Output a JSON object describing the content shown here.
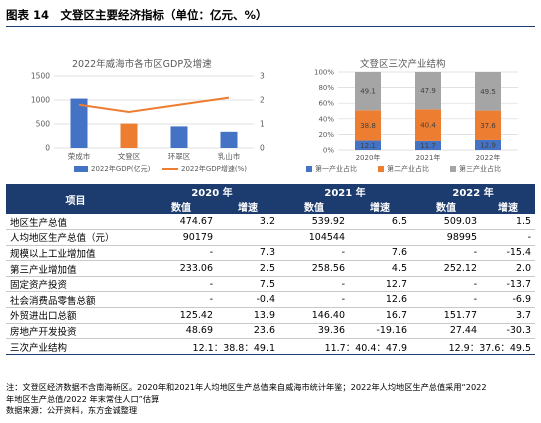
{
  "figure": {
    "title": "图表 14　文登区主要经济指标（单位：亿元、%）"
  },
  "chart_data": [
    {
      "type": "bar",
      "title": "2022年威海市各市区GDP及增速",
      "categories": [
        "荣成市",
        "文登区",
        "环翠区",
        "乳山市"
      ],
      "series": [
        {
          "name": "2022年GDP(亿元)",
          "values": [
            1030,
            509,
            450,
            337
          ],
          "color": "#4472c4",
          "axis": "left"
        },
        {
          "name": "2022年GDP增速(%)",
          "values": [
            1.8,
            1.5,
            1.8,
            2.1
          ],
          "color": "#ed7d31",
          "axis": "right",
          "type": "line"
        }
      ],
      "yticks_left": [
        "0",
        "500",
        "1000",
        "1500"
      ],
      "yticks_right": [
        "0",
        "1",
        "2",
        "3"
      ],
      "ylim": [
        0,
        1500
      ],
      "ylim_right": [
        0,
        3
      ]
    },
    {
      "type": "bar",
      "stacked": true,
      "title": "文登区三次产业结构",
      "categories": [
        "2020年",
        "2021年",
        "2022年"
      ],
      "series": [
        {
          "name": "第一产业占比",
          "values": [
            12.1,
            11.7,
            12.9
          ],
          "color": "#4472c4"
        },
        {
          "name": "第二产业占比",
          "values": [
            38.8,
            40.4,
            37.6
          ],
          "color": "#ed7d31"
        },
        {
          "name": "第三产业占比",
          "values": [
            49.1,
            47.9,
            49.5
          ],
          "color": "#a5a5a5"
        }
      ],
      "yticks": [
        "0%",
        "20%",
        "40%",
        "60%",
        "80%",
        "100%"
      ],
      "ylim": [
        0,
        100
      ]
    }
  ],
  "table": {
    "label_header": "项目",
    "years": [
      "2020 年",
      "2021 年",
      "2022 年"
    ],
    "sub_headers": [
      "数值",
      "增速"
    ],
    "rows": [
      {
        "label": "地区生产总值",
        "cells": [
          "474.67",
          "3.2",
          "539.92",
          "6.5",
          "509.03",
          "1.5"
        ]
      },
      {
        "label": "人均地区生产总值（元）",
        "cells": [
          "90179",
          "",
          "104544",
          "",
          "98995",
          "-"
        ]
      },
      {
        "label": "规模以上工业增加值",
        "cells": [
          "-",
          "7.3",
          "-",
          "7.6",
          "-",
          "-15.4"
        ]
      },
      {
        "label": "第三产业增加值",
        "cells": [
          "233.06",
          "2.5",
          "258.56",
          "4.5",
          "252.12",
          "2.0"
        ]
      },
      {
        "label": "固定资产投资",
        "cells": [
          "-",
          "7.5",
          "-",
          "12.7",
          "-",
          "-13.7"
        ]
      },
      {
        "label": "社会消费品零售总额",
        "cells": [
          "-",
          "-0.4",
          "-",
          "12.6",
          "-",
          "-6.9"
        ]
      },
      {
        "label": "外贸进出口总额",
        "cells": [
          "125.42",
          "13.9",
          "146.40",
          "16.7",
          "151.77",
          "3.7"
        ]
      },
      {
        "label": "房地产开发投资",
        "cells": [
          "48.69",
          "23.6",
          "39.36",
          "-19.16",
          "27.44",
          "-30.3"
        ]
      },
      {
        "label": "三次产业结构",
        "cells": [
          "12.1：38.8：49.1",
          "",
          "11.7：40.4：47.9",
          "",
          "12.9：37.6：49.5",
          ""
        ]
      }
    ]
  },
  "notes": {
    "line1": "注：文登区经济数据不含南海新区。2020年和2021年人均地区生产总值来自威海市统计年鉴；2022年人均地区生产总值采用“2022",
    "line2": "年地区生产总值/2022 年末常住人口”估算",
    "line3": "数据来源：公开资料，东方金诚整理"
  }
}
